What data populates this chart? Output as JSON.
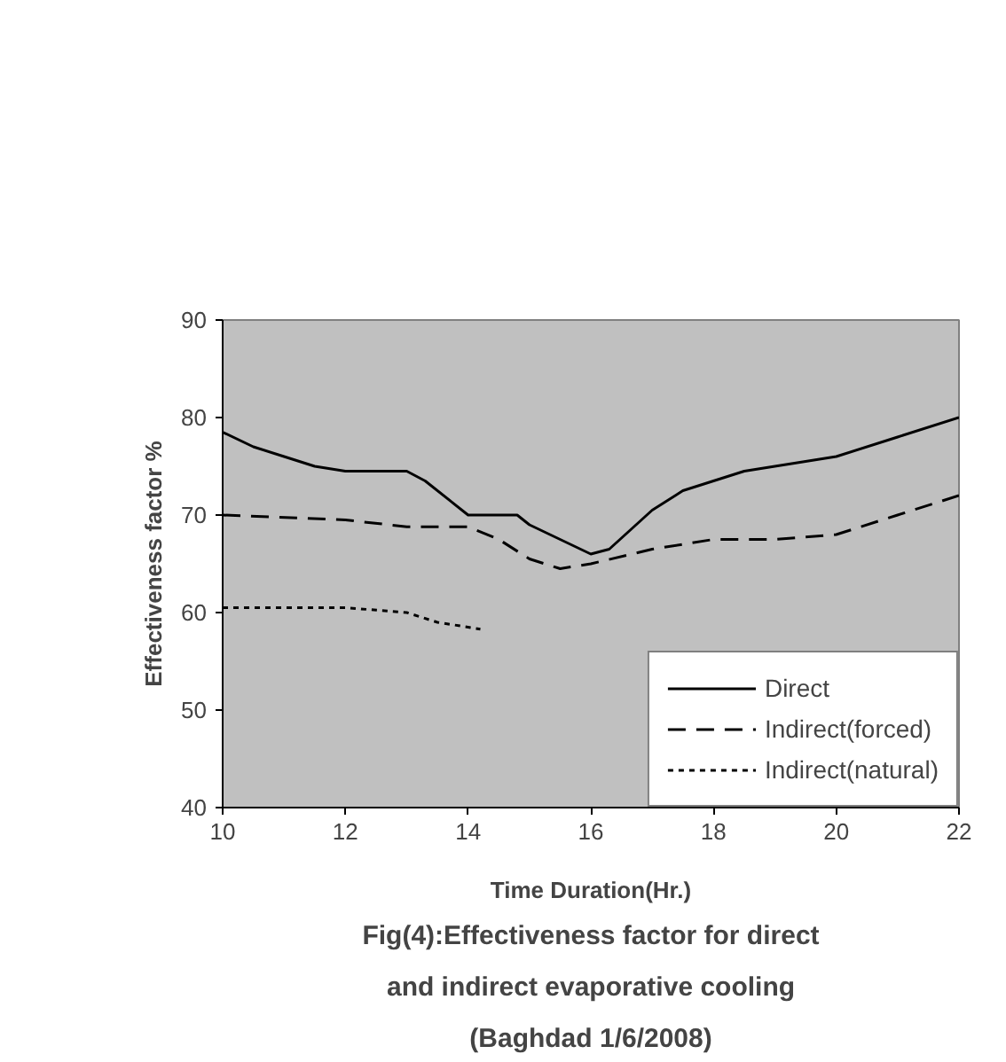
{
  "chart_data": {
    "type": "line",
    "title": "Fig(4):Effectiveness factor for direct and indirect evaporative cooling (Baghdad 1/6/2008)",
    "xlabel": "Time Duration(Hr.)",
    "ylabel": "Effectiveness factor %",
    "xlim": [
      10,
      22
    ],
    "xticks": [
      10,
      12,
      14,
      16,
      18,
      20,
      22
    ],
    "ylim": [
      40,
      90
    ],
    "yticks": [
      40,
      50,
      60,
      70,
      80,
      90
    ],
    "grid": false,
    "legend": "bottom right",
    "series": [
      {
        "name": "Direct",
        "color": "#000000",
        "line_style": "solid",
        "x": [
          10,
          10.5,
          11,
          11.5,
          12,
          13,
          13.3,
          14,
          14.8,
          15,
          16,
          16.3,
          17,
          17.5,
          18,
          18.5,
          19,
          20,
          21,
          22
        ],
        "values": [
          78.5,
          77,
          76,
          75,
          74.5,
          74.5,
          73.5,
          70,
          70,
          69,
          66,
          66.5,
          70.5,
          72.5,
          73.5,
          74.5,
          75,
          76,
          78,
          80
        ]
      },
      {
        "name": "Indirect(forced)",
        "color": "#000000",
        "line_style": "dashed",
        "x": [
          10,
          12,
          13,
          14,
          14.5,
          15,
          15.5,
          16,
          17,
          18,
          19,
          20,
          21,
          22
        ],
        "values": [
          70,
          69.5,
          68.8,
          68.8,
          67.5,
          65.5,
          64.5,
          65,
          66.5,
          67.5,
          67.5,
          68,
          70,
          72
        ]
      },
      {
        "name": "Indirect(natural)",
        "color": "#000000",
        "line_style": "dotted",
        "x": [
          10,
          12,
          13,
          13.5,
          14,
          14.2
        ],
        "values": [
          60.5,
          60.5,
          60,
          59,
          58.5,
          58.3
        ]
      }
    ]
  }
}
